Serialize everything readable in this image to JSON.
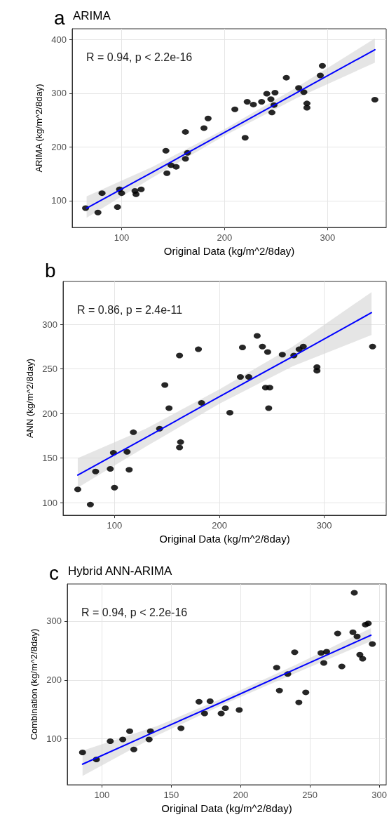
{
  "chart_data": [
    {
      "type": "scatter",
      "title": "ARIMA",
      "xlabel": "Original Data (kg/m^2/8day)",
      "ylabel": "ARIMA (kg/m^2/8day)",
      "annotations": [
        "a",
        "R = 0.94, p < 2.2e-16"
      ],
      "xlim": [
        52,
        357
      ],
      "ylim": [
        50,
        420
      ],
      "xticks": [
        100,
        200,
        300
      ],
      "yticks": [
        100,
        200,
        300,
        400
      ],
      "grid": true,
      "series": [
        {
          "type": "scatter",
          "color": "#000000",
          "marker": "circle",
          "x": [
            65,
            77,
            81,
            96,
            98,
            100,
            113,
            114,
            119,
            143,
            144,
            148,
            153,
            162,
            162,
            164,
            180,
            184,
            210,
            220,
            222,
            228,
            236,
            241,
            245,
            246,
            248,
            249,
            260,
            272,
            277,
            280,
            280,
            293,
            295,
            346
          ],
          "values": [
            86,
            78,
            114,
            88,
            121,
            114,
            118,
            112,
            121,
            193,
            151,
            166,
            163,
            228,
            178,
            189,
            235,
            253,
            270,
            217,
            284,
            279,
            284,
            299,
            289,
            264,
            278,
            301,
            329,
            310,
            302,
            273,
            281,
            333,
            351,
            288
          ]
        },
        {
          "type": "line",
          "color": "#0000ff",
          "marker": "none",
          "x": [
            66,
            130,
            200,
            270,
            346
          ],
          "values": [
            86,
            153,
            227,
            301,
            381
          ],
          "lower": [
            68,
            143,
            221,
            291,
            357
          ],
          "upper": [
            108,
            163,
            233,
            311,
            402
          ]
        }
      ]
    },
    {
      "type": "scatter",
      "xlabel": "Original Data (kg/m^2/8day)",
      "ylabel": "ANN (kg/m^2/8day)",
      "annotations": [
        "b",
        "R = 0.86, p = 2.4e-11"
      ],
      "xlim": [
        51,
        359
      ],
      "ylim": [
        86,
        348
      ],
      "xticks": [
        100,
        200,
        300
      ],
      "yticks": [
        100,
        150,
        200,
        250,
        300
      ],
      "grid": true,
      "series": [
        {
          "type": "scatter",
          "color": "#000000",
          "marker": "circle",
          "x": [
            65,
            77,
            82,
            96,
            99,
            100,
            112,
            114,
            118,
            143,
            148,
            152,
            162,
            162,
            163,
            180,
            183,
            210,
            220,
            222,
            228,
            236,
            241,
            244,
            246,
            247,
            248,
            260,
            271,
            276,
            280,
            293,
            293,
            346
          ],
          "values": [
            115,
            98,
            135,
            138,
            156,
            117,
            157,
            137,
            179,
            183,
            232,
            206,
            265,
            162,
            168,
            272,
            212,
            201,
            241,
            274,
            241,
            287,
            275,
            229,
            269,
            206,
            229,
            266,
            265,
            272,
            275,
            252,
            248,
            275
          ]
        },
        {
          "type": "line",
          "color": "#0000ff",
          "marker": "none",
          "x": [
            65,
            130,
            200,
            270,
            345
          ],
          "values": [
            131,
            173,
            219,
            264,
            313
          ],
          "lower": [
            117,
            163,
            211,
            253,
            288
          ],
          "upper": [
            150,
            183,
            227,
            275,
            336
          ]
        }
      ]
    },
    {
      "type": "scatter",
      "title": "Hybrid ANN-ARIMA",
      "xlabel": "Original Data (kg/m^2/8day)",
      "ylabel": "Combination (kg/m^2/8day)",
      "annotations": [
        "c",
        "R = 0.94, p < 2.2e-16"
      ],
      "xlim": [
        75,
        305
      ],
      "ylim": [
        22,
        363
      ],
      "xticks": [
        100,
        150,
        200,
        250,
        300
      ],
      "yticks": [
        100,
        200,
        300
      ],
      "grid": true,
      "series": [
        {
          "type": "scatter",
          "color": "#000000",
          "marker": "circle",
          "x": [
            86,
            96,
            106,
            115,
            120,
            123,
            134,
            135,
            157,
            170,
            174,
            178,
            186,
            189,
            199,
            226,
            228,
            234,
            239,
            242,
            247,
            258,
            260,
            262,
            270,
            273,
            281,
            282,
            284,
            286,
            288,
            290,
            292,
            295
          ],
          "values": [
            77,
            65,
            96,
            99,
            113,
            82,
            99,
            113,
            118,
            163,
            143,
            164,
            143,
            152,
            149,
            221,
            182,
            210,
            247,
            162,
            179,
            246,
            229,
            248,
            279,
            223,
            281,
            348,
            274,
            243,
            236,
            294,
            296,
            261
          ]
        },
        {
          "type": "line",
          "color": "#0000ff",
          "marker": "none",
          "x": [
            86,
            140,
            190,
            240,
            294
          ],
          "values": [
            57,
            114,
            166,
            219,
            276
          ],
          "lower": [
            37,
            106,
            161,
            212,
            266
          ],
          "upper": [
            80,
            122,
            172,
            226,
            288
          ]
        }
      ]
    }
  ]
}
